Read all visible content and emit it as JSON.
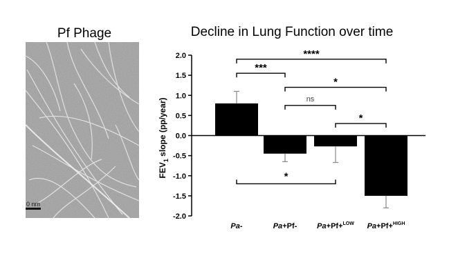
{
  "micrograph": {
    "title": "Pf Phage",
    "scale_bar_label": "0 nm"
  },
  "chart_data": {
    "type": "bar",
    "title": "Decline in Lung Function over time",
    "ylabel_main": "FEV",
    "ylabel_sub": "1",
    "ylabel_rest": " slope (pp/year)",
    "xlabel": "",
    "ylim": [
      -2.0,
      2.0
    ],
    "yticks": [
      2.0,
      1.5,
      1.0,
      0.5,
      0.0,
      -0.5,
      -1.0,
      -1.5,
      -2.0
    ],
    "ytick_labels": [
      "2.0",
      "1.5",
      "1.0",
      "0.5",
      "0.0",
      "-0.5",
      "-1.0",
      "-1.5",
      "-2.0"
    ],
    "bar_color": "#000000",
    "categories": [
      {
        "italic": "Pa",
        "rest": "-",
        "sup": ""
      },
      {
        "italic": "Pa",
        "rest": "+Pf-",
        "sup": ""
      },
      {
        "italic": "Pa",
        "rest": "+Pf+",
        "sup": "LOW"
      },
      {
        "italic": "Pa",
        "rest": "+Pf+",
        "sup": "HIGH"
      }
    ],
    "values": [
      0.8,
      -0.45,
      -0.27,
      -1.5
    ],
    "error_bars": [
      {
        "low": 0.8,
        "high": 1.1
      },
      {
        "low": -0.65,
        "high": -0.45
      },
      {
        "low": -0.67,
        "high": -0.27
      },
      {
        "low": -1.8,
        "high": -1.5
      }
    ],
    "significance": [
      {
        "from": 0,
        "to": 1,
        "label": "***"
      },
      {
        "from": 0,
        "to": 3,
        "label": "****"
      },
      {
        "from": 1,
        "to": 3,
        "label": "*"
      },
      {
        "from": 1,
        "to": 2,
        "label": "ns"
      },
      {
        "from": 2,
        "to": 3,
        "label": "*"
      },
      {
        "from": 0,
        "to": 2,
        "label": "*"
      }
    ]
  }
}
